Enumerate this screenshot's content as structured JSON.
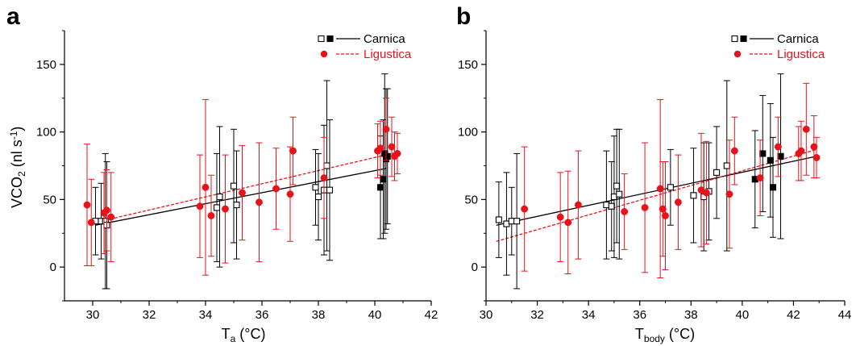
{
  "colors": {
    "carnica": "#000000",
    "ligustica": "#e8131a",
    "axis": "#000000"
  },
  "chart_data": [
    {
      "panel": "a",
      "type": "scatter",
      "ylabel": {
        "main": "VCO",
        "sub": "2",
        "unit_open": " (nl s",
        "unit_sup": "-1",
        "unit_close": ")"
      },
      "xlabel": {
        "main": "T",
        "sub": "a",
        "unit": " (°C)"
      },
      "xlim": [
        29,
        42
      ],
      "ylim": [
        -25,
        175
      ],
      "xticks": [
        30,
        32,
        34,
        36,
        38,
        40,
        42
      ],
      "yticks": [
        0,
        50,
        100,
        150
      ],
      "legend_position": "top-right",
      "series": [
        {
          "name": "Carnica",
          "line_style": "solid",
          "fit": {
            "x": [
              30.1,
              40.4
            ],
            "y": [
              31,
              73
            ]
          },
          "points": [
            {
              "x": 30.1,
              "y": 34,
              "err": 25,
              "filled": false
            },
            {
              "x": 30.3,
              "y": 34,
              "err": 28,
              "filled": false
            },
            {
              "x": 30.45,
              "y": 34,
              "err": 50,
              "filled": false
            },
            {
              "x": 30.5,
              "y": 31,
              "err": 47,
              "filled": false
            },
            {
              "x": 34.4,
              "y": 44,
              "err": 40,
              "filled": false
            },
            {
              "x": 34.5,
              "y": 52,
              "err": 52,
              "filled": false
            },
            {
              "x": 35.0,
              "y": 60,
              "err": 42,
              "filled": false
            },
            {
              "x": 35.1,
              "y": 46,
              "err": 40,
              "filled": false
            },
            {
              "x": 37.9,
              "y": 59,
              "err": 28,
              "filled": false
            },
            {
              "x": 38.0,
              "y": 52,
              "err": 32,
              "filled": false
            },
            {
              "x": 38.2,
              "y": 57,
              "err": 48,
              "filled": false
            },
            {
              "x": 38.3,
              "y": 75,
              "err": 63,
              "filled": false
            },
            {
              "x": 38.4,
              "y": 57,
              "err": 52,
              "filled": false
            },
            {
              "x": 40.2,
              "y": 59,
              "err": 38,
              "filled": true
            },
            {
              "x": 40.3,
              "y": 65,
              "err": 44,
              "filled": true
            },
            {
              "x": 40.35,
              "y": 84,
              "err": 59,
              "filled": true
            },
            {
              "x": 40.4,
              "y": 80,
              "err": 52,
              "filled": true
            },
            {
              "x": 40.45,
              "y": 82,
              "err": 50,
              "filled": true
            }
          ]
        },
        {
          "name": "Ligustica",
          "line_style": "dashed",
          "fit": {
            "x": [
              30.1,
              40.8
            ],
            "y": [
              33,
              85
            ]
          },
          "points": [
            {
              "x": 29.8,
              "y": 46,
              "err": 45
            },
            {
              "x": 29.95,
              "y": 33,
              "err": 32
            },
            {
              "x": 30.4,
              "y": 40,
              "err": 30
            },
            {
              "x": 30.5,
              "y": 42,
              "err": 30
            },
            {
              "x": 30.65,
              "y": 37,
              "err": 33
            },
            {
              "x": 33.8,
              "y": 45,
              "err": 38
            },
            {
              "x": 34.0,
              "y": 59,
              "err": 65
            },
            {
              "x": 34.2,
              "y": 38,
              "err": 30
            },
            {
              "x": 34.7,
              "y": 43,
              "err": 40
            },
            {
              "x": 35.3,
              "y": 55,
              "err": 35
            },
            {
              "x": 35.9,
              "y": 48,
              "err": 44
            },
            {
              "x": 36.5,
              "y": 58,
              "err": 30
            },
            {
              "x": 37.0,
              "y": 54,
              "err": 35
            },
            {
              "x": 37.1,
              "y": 86,
              "err": 25
            },
            {
              "x": 38.2,
              "y": 66,
              "err": 30
            },
            {
              "x": 40.1,
              "y": 86,
              "err": 20
            },
            {
              "x": 40.2,
              "y": 88,
              "err": 20
            },
            {
              "x": 40.4,
              "y": 102,
              "err": 23
            },
            {
              "x": 40.6,
              "y": 89,
              "err": 22
            },
            {
              "x": 40.7,
              "y": 82,
              "err": 18
            },
            {
              "x": 40.8,
              "y": 84,
              "err": 15
            }
          ]
        }
      ]
    },
    {
      "panel": "b",
      "type": "scatter",
      "xlabel": {
        "main": "T",
        "sub": "body",
        "unit": " (°C)"
      },
      "xlim": [
        30,
        44
      ],
      "ylim": [
        -25,
        175
      ],
      "xticks": [
        30,
        32,
        34,
        36,
        38,
        40,
        42,
        44
      ],
      "yticks": [
        0,
        50,
        100,
        150
      ],
      "legend_position": "top-right",
      "series": [
        {
          "name": "Carnica",
          "line_style": "solid",
          "fit": {
            "x": [
              30.4,
              42.9
            ],
            "y": [
              31,
              82
            ]
          },
          "points": [
            {
              "x": 30.5,
              "y": 35,
              "err": 28,
              "filled": false
            },
            {
              "x": 30.8,
              "y": 32,
              "err": 38,
              "filled": false
            },
            {
              "x": 31.0,
              "y": 34,
              "err": 25,
              "filled": false
            },
            {
              "x": 31.2,
              "y": 34,
              "err": 50,
              "filled": false
            },
            {
              "x": 34.7,
              "y": 46,
              "err": 40,
              "filled": false
            },
            {
              "x": 34.9,
              "y": 45,
              "err": 33,
              "filled": false
            },
            {
              "x": 35.0,
              "y": 52,
              "err": 45,
              "filled": false
            },
            {
              "x": 35.1,
              "y": 60,
              "err": 42,
              "filled": false
            },
            {
              "x": 35.2,
              "y": 54,
              "err": 48,
              "filled": false
            },
            {
              "x": 37.2,
              "y": 59,
              "err": 28,
              "filled": false
            },
            {
              "x": 38.1,
              "y": 53,
              "err": 35,
              "filled": false
            },
            {
              "x": 38.5,
              "y": 52,
              "err": 40,
              "filled": false
            },
            {
              "x": 38.7,
              "y": 56,
              "err": 36,
              "filled": false
            },
            {
              "x": 39.0,
              "y": 70,
              "err": 34,
              "filled": false
            },
            {
              "x": 39.4,
              "y": 75,
              "err": 63,
              "filled": false
            },
            {
              "x": 40.5,
              "y": 65,
              "err": 36,
              "filled": true
            },
            {
              "x": 40.8,
              "y": 84,
              "err": 43,
              "filled": true
            },
            {
              "x": 41.1,
              "y": 79,
              "err": 42,
              "filled": true
            },
            {
              "x": 41.2,
              "y": 59,
              "err": 37,
              "filled": true
            },
            {
              "x": 41.5,
              "y": 82,
              "err": 61,
              "filled": true
            }
          ]
        },
        {
          "name": "Ligustica",
          "line_style": "dashed",
          "fit": {
            "x": [
              30.4,
              42.9
            ],
            "y": [
              19,
              87
            ]
          },
          "points": [
            {
              "x": 31.5,
              "y": 43,
              "err": 46
            },
            {
              "x": 32.9,
              "y": 37,
              "err": 33
            },
            {
              "x": 33.2,
              "y": 33,
              "err": 38
            },
            {
              "x": 33.6,
              "y": 46,
              "err": 40
            },
            {
              "x": 35.4,
              "y": 41,
              "err": 28
            },
            {
              "x": 36.2,
              "y": 44,
              "err": 48
            },
            {
              "x": 36.8,
              "y": 58,
              "err": 66
            },
            {
              "x": 36.9,
              "y": 43,
              "err": 35
            },
            {
              "x": 37.0,
              "y": 38,
              "err": 40
            },
            {
              "x": 37.5,
              "y": 48,
              "err": 35
            },
            {
              "x": 38.4,
              "y": 57,
              "err": 42
            },
            {
              "x": 38.6,
              "y": 55,
              "err": 38
            },
            {
              "x": 39.5,
              "y": 54,
              "err": 40
            },
            {
              "x": 39.7,
              "y": 86,
              "err": 25
            },
            {
              "x": 40.7,
              "y": 66,
              "err": 28
            },
            {
              "x": 41.4,
              "y": 89,
              "err": 22
            },
            {
              "x": 42.2,
              "y": 84,
              "err": 20
            },
            {
              "x": 42.3,
              "y": 86,
              "err": 22
            },
            {
              "x": 42.5,
              "y": 102,
              "err": 34
            },
            {
              "x": 42.8,
              "y": 89,
              "err": 23
            },
            {
              "x": 42.9,
              "y": 81,
              "err": 15
            }
          ]
        }
      ]
    }
  ]
}
